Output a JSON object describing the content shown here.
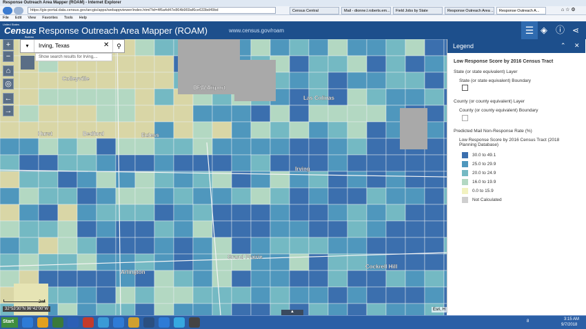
{
  "window": {
    "title": "Response Outreach Area Mapper (ROAM) - Internet Explorer",
    "address": "https://gis-portal.data.census.gov/arcgis/apps/webappviewer/index.html?id=4f6a4d47e864b969af6ce633bd49bd",
    "tabs": [
      "Census Central",
      "Mail - dionne.l.roberts.em...",
      "Field Jobs by State",
      "Response Outreach Area ...",
      "Response Outreach A..."
    ],
    "menu": [
      "File",
      "Edit",
      "View",
      "Favorites",
      "Tools",
      "Help"
    ]
  },
  "header": {
    "logo_small": "United States",
    "logo": "Census",
    "logo_sub": "Bureau",
    "title": "Response Outreach Area Mapper (ROAM)",
    "url": "www.census.gov/roam"
  },
  "search": {
    "query": "Irving, Texas",
    "suggestion": "Show search results for Irving,..."
  },
  "map": {
    "places": [
      "Colleyville",
      "DFW Airport",
      "Las Colinas",
      "Hurst",
      "Bedford",
      "Euless",
      "Irving",
      "Grand Prairie",
      "Arlington",
      "Cockrell Hill"
    ],
    "scale": "2mi",
    "coordinates": "32°53'30\"N 96°42'00\"W",
    "attribution": "Esri, H"
  },
  "legend": {
    "title": "Legend",
    "layer_title": "Low Response Score by 2016 Census Tract",
    "state_layer": "State (or state equivalent) Layer",
    "state_boundary": "State (or state equivalent) Boundary",
    "county_layer": "County (or county equivalent) Layer",
    "county_boundary": "County (or county equivalent) Boundary",
    "rate_title": "Predicted Mail Non-Response Rate (%)",
    "rate_subtitle": "Low Response Score by 2016 Census Tract (2018 Planning Database)",
    "items": [
      {
        "label": "30.0 to 49.1",
        "color": "#3b6fae"
      },
      {
        "label": "25.0 to 29.9",
        "color": "#4f97bd"
      },
      {
        "label": "20.0 to 24.9",
        "color": "#74b9c3"
      },
      {
        "label": "16.0 to 19.9",
        "color": "#b3d8c2"
      },
      {
        "label": "0.0 to 15.9",
        "color": "#f2f2c0"
      },
      {
        "label": "Not Calculated",
        "color": "#cfcfcf"
      }
    ]
  },
  "taskbar": {
    "start": "Start",
    "badge": "8",
    "time": "3:15 AM",
    "date": "9/7/2018"
  }
}
